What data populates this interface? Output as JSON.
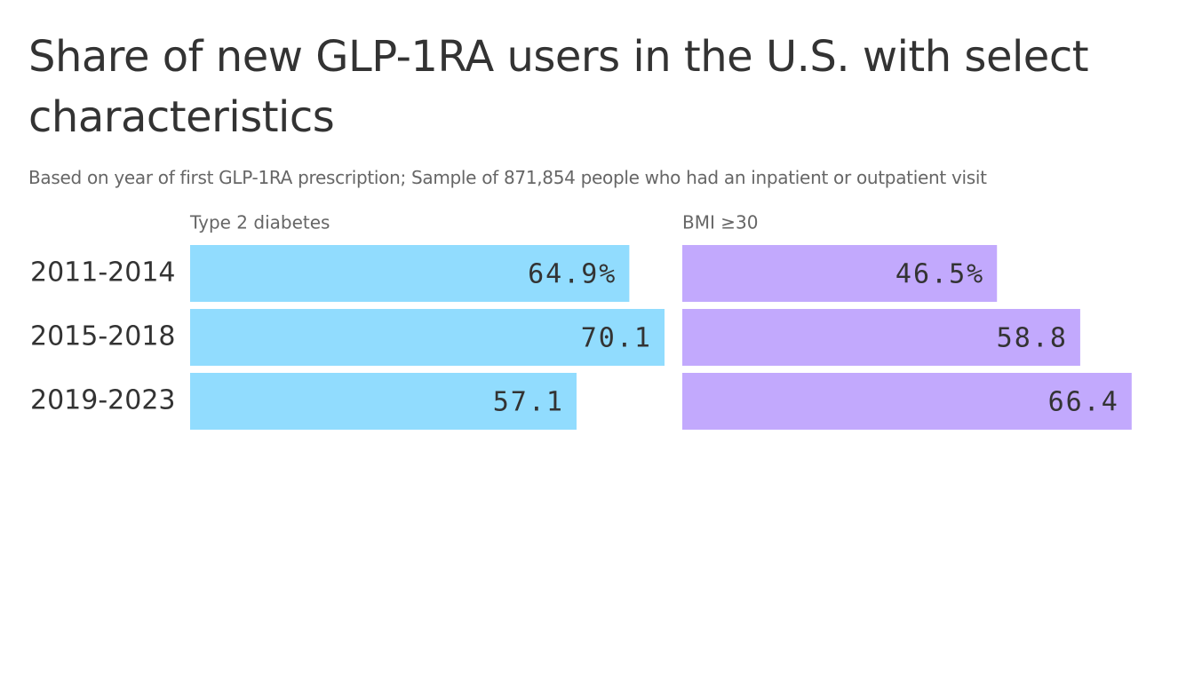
{
  "chart_data": {
    "type": "bar",
    "title": "Share of new GLP-1RA users in the U.S. with select characteristics",
    "subtitle": "Based on year of first GLP-1RA prescription; Sample of 871,854 people who had an inpatient or outpatient visit",
    "categories": [
      "2011-2014",
      "2015-2018",
      "2019-2023"
    ],
    "series": [
      {
        "name": "Type 2 diabetes",
        "color": "#91dcfe",
        "values": [
          64.9,
          70.1,
          57.1
        ],
        "value_labels": [
          "64.9%",
          "70.1",
          "57.1"
        ]
      },
      {
        "name": "BMI ≥30",
        "color": "#c2a9fd",
        "values": [
          46.5,
          58.8,
          66.4
        ],
        "value_labels": [
          "46.5%",
          "58.8",
          "66.4"
        ]
      }
    ]
  }
}
